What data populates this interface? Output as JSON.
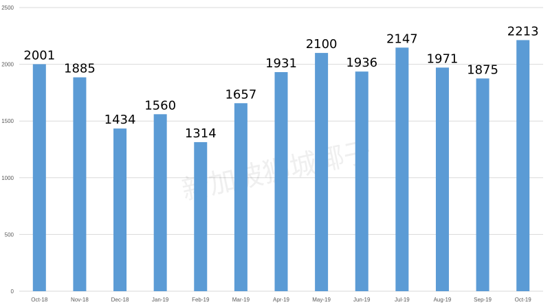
{
  "chart_data": {
    "type": "bar",
    "title": "",
    "xlabel": "",
    "ylabel": "",
    "categories": [
      "Oct-18",
      "Nov-18",
      "Dec-18",
      "Jan-19",
      "Feb-19",
      "Mar-19",
      "Apr-19",
      "May-19",
      "Jun-19",
      "Jul-19",
      "Aug-19",
      "Sep-19",
      "Oct-19"
    ],
    "values": [
      2001,
      1885,
      1434,
      1560,
      1314,
      1657,
      1931,
      2100,
      1936,
      2147,
      1971,
      1875,
      2213
    ],
    "ylim": [
      0,
      2500
    ],
    "yticks": [
      0,
      500,
      1000,
      1500,
      2000,
      2500
    ],
    "grid": true,
    "legend": "none",
    "bar_color": "#5b9bd5",
    "grid_color": "#d9d9d9",
    "watermark": "新加坡狮城椰子"
  }
}
